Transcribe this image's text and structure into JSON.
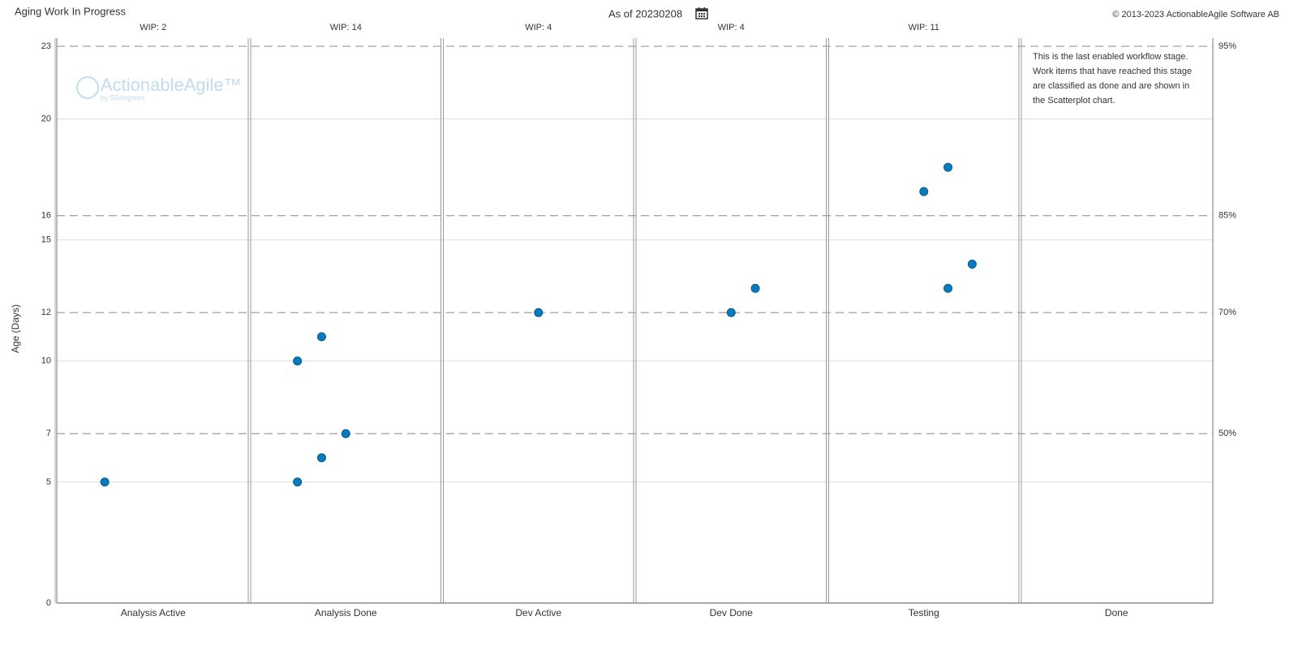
{
  "chart_data": {
    "type": "scatter",
    "title": "Aging Work In Progress",
    "as_of": "As of 20230208",
    "copyright": "© 2013-2023 ActionableAgile Software AB",
    "logo": {
      "name": "ActionableAgile™",
      "by": "by 55degrees"
    },
    "y_label": "Age (Days)",
    "categories": [
      "Analysis Active",
      "Analysis Done",
      "Dev Active",
      "Dev Done",
      "Testing",
      "Done"
    ],
    "wip": [
      "WIP: 2",
      "WIP: 14",
      "WIP: 4",
      "WIP: 4",
      "WIP: 11"
    ],
    "values": [
      [
        5
      ],
      [
        10,
        5,
        11,
        6,
        7
      ],
      [
        12
      ],
      [
        12,
        13
      ],
      [
        17,
        18,
        13,
        14
      ],
      []
    ],
    "color": "#0a7abf",
    "ylim": [
      0,
      23
    ],
    "yticks": [
      0,
      5,
      7,
      10,
      12,
      15,
      16,
      20,
      23
    ],
    "percentiles": [
      {
        "value": 23,
        "label": "95%"
      },
      {
        "value": 16,
        "label": "85%"
      },
      {
        "value": 12,
        "label": "70%"
      },
      {
        "value": 7,
        "label": "50%"
      }
    ],
    "grid": true,
    "note": [
      "This is the last enabled workflow stage.",
      "Work items that have reached this stage",
      "are classified as done and are shown in",
      "the Scatterplot chart."
    ]
  }
}
